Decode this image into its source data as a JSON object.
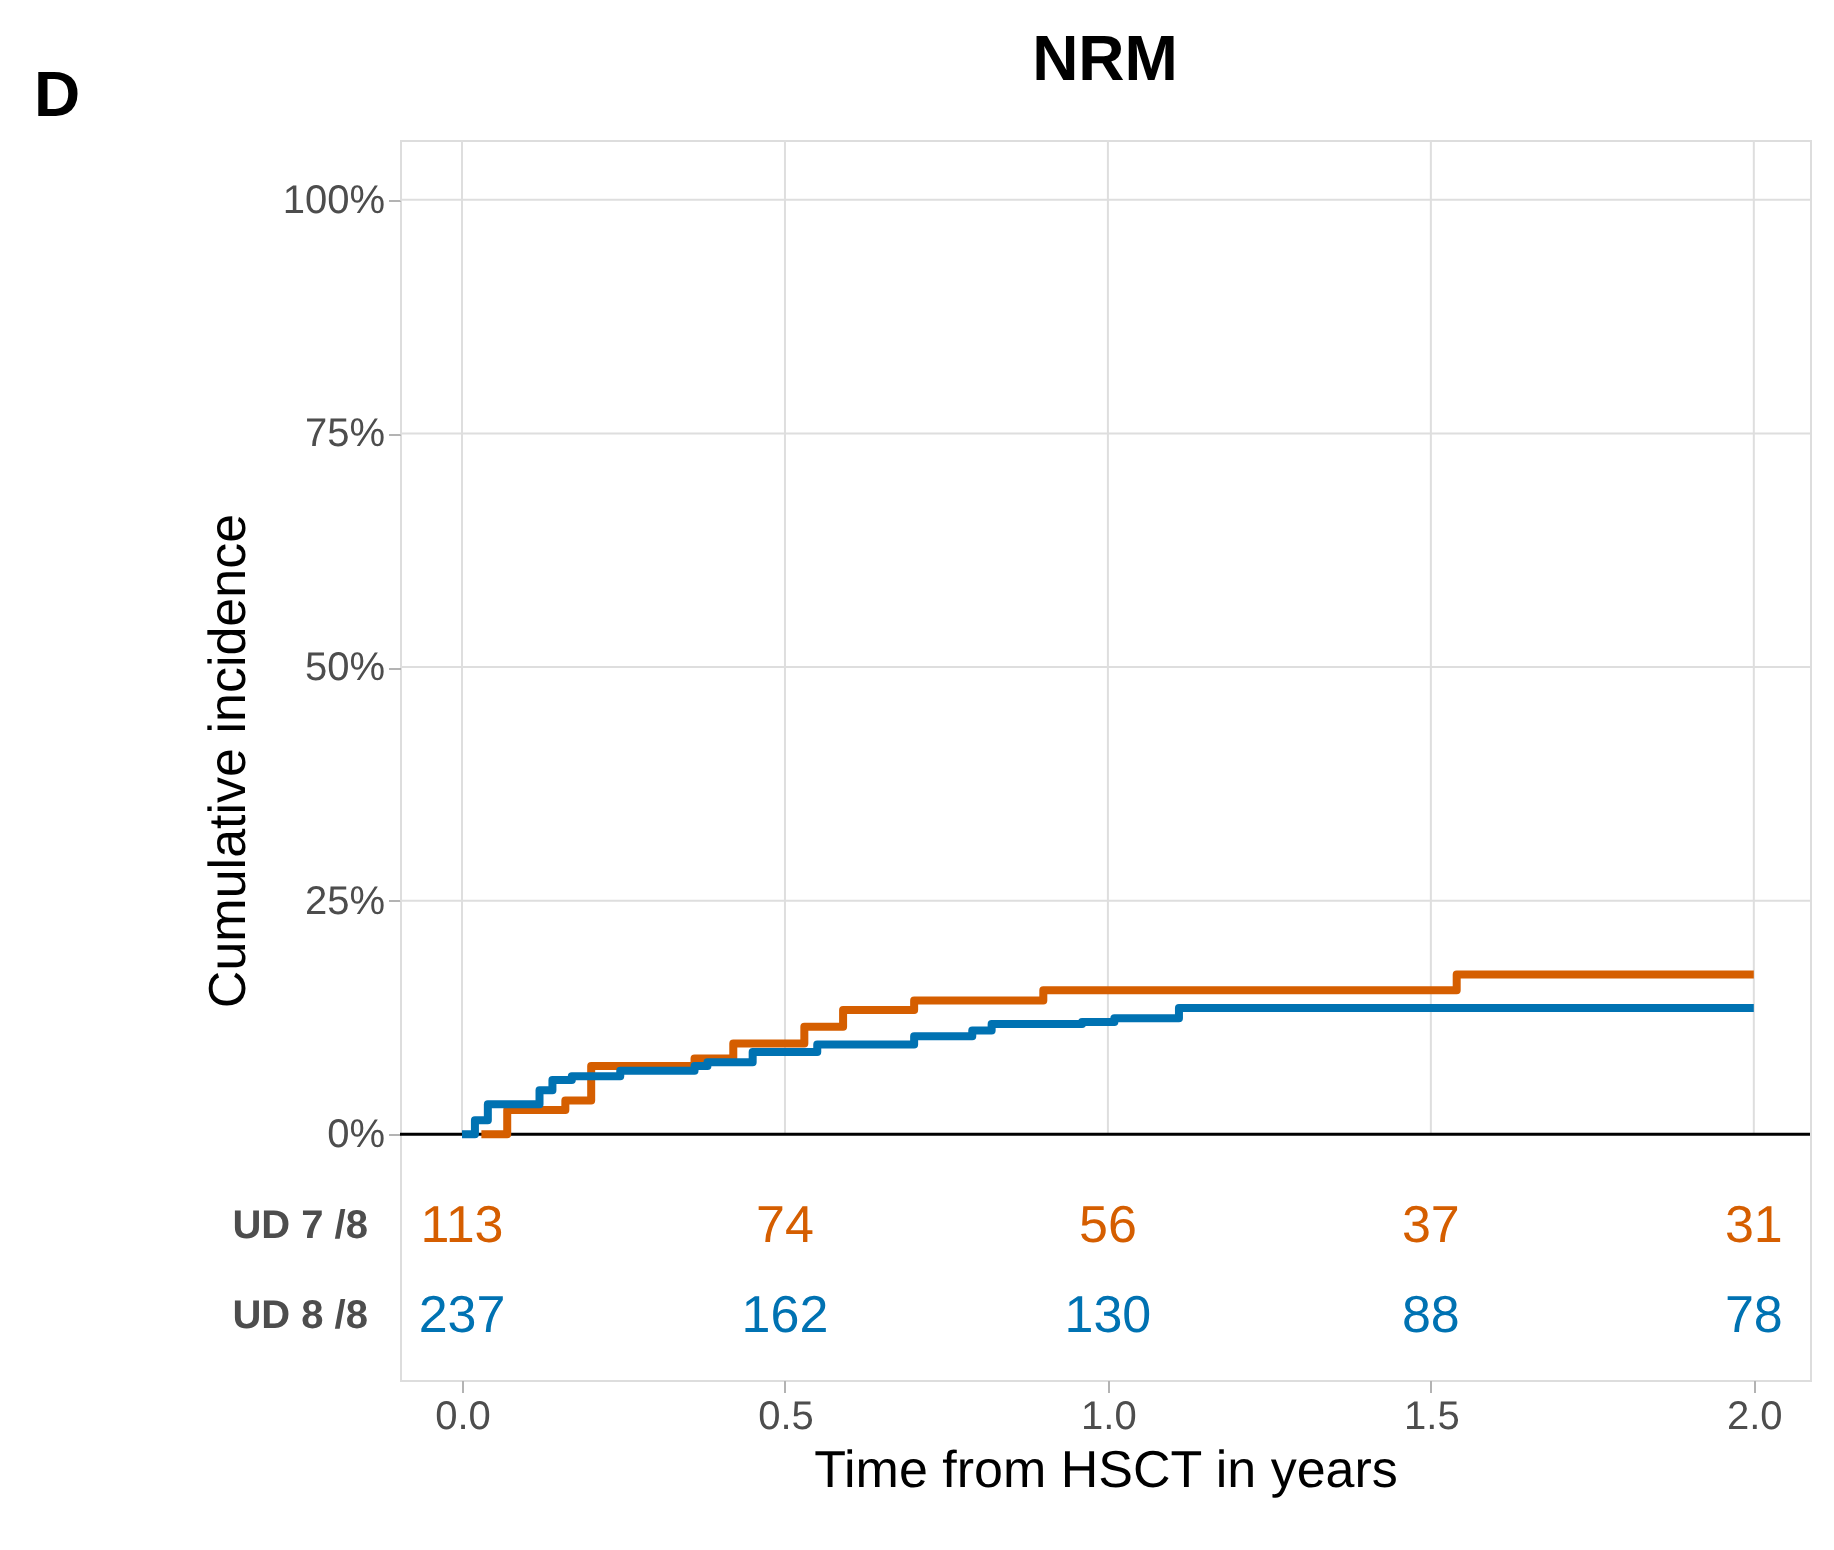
{
  "chart_data": {
    "type": "step",
    "title": "NRM",
    "xlabel": "Time from HSCT in years",
    "ylabel": "Cumulative incidence",
    "series": [
      {
        "color": "#d55e00",
        "x": [
          0.03,
          0.07,
          0.16,
          0.2,
          0.36,
          0.42,
          0.53,
          0.59,
          0.7,
          0.9,
          1.54,
          2.0
        ],
        "values": [
          0,
          2.6,
          3.6,
          7.3,
          8.1,
          9.7,
          11.5,
          13.3,
          14.3,
          15.4,
          17.1,
          17.1
        ]
      },
      {
        "color": "#0072b2",
        "x": [
          0.0,
          0.02,
          0.04,
          0.12,
          0.14,
          0.17,
          0.245,
          0.36,
          0.38,
          0.45,
          0.55,
          0.7,
          0.79,
          0.82,
          0.96,
          1.01,
          1.11,
          2.0
        ],
        "values": [
          0,
          1.5,
          3.2,
          4.7,
          5.8,
          6.2,
          6.8,
          7.3,
          7.7,
          8.8,
          9.6,
          10.5,
          11.1,
          11.8,
          12.0,
          12.4,
          13.5,
          13.5
        ]
      }
    ],
    "xlim": [
      -0.096,
      2.087
    ],
    "ylim": [
      -26.3,
      106.4
    ],
    "xticks": [
      {
        "value": 0,
        "label": "0.0"
      },
      0.5,
      {
        "value": 1,
        "label": "1.0"
      },
      1.5,
      {
        "value": 2,
        "label": "2.0"
      }
    ],
    "yticks": [
      {
        "value": 0,
        "label": "0%"
      },
      {
        "value": 25,
        "label": "25%"
      },
      {
        "value": 50,
        "label": "50%"
      },
      {
        "value": 75,
        "label": "75%"
      },
      {
        "value": 100,
        "label": "100%"
      }
    ],
    "ref_lines": [
      {
        "axis": "y",
        "value": 0,
        "color": "#000000"
      }
    ],
    "grid": true,
    "annotations": [
      "D",
      "UD 7 /8",
      "113",
      "74",
      "56",
      "37",
      "31",
      "UD 8 /8",
      "237",
      "162",
      "130",
      "88",
      "78"
    ]
  }
}
